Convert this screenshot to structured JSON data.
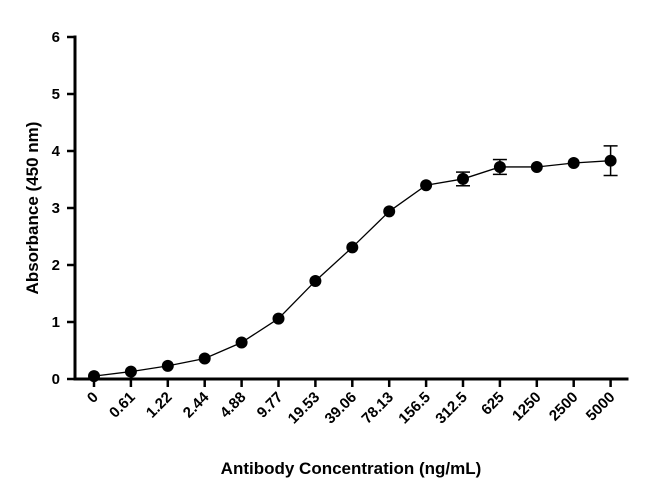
{
  "chart_data": {
    "type": "line",
    "title": "",
    "xlabel": "Antibody Concentration (ng/mL)",
    "ylabel": "Absorbance (450 nm)",
    "categories": [
      "0",
      "0.61",
      "1.22",
      "2.44",
      "4.88",
      "9.77",
      "19.53",
      "39.06",
      "78.13",
      "156.5",
      "312.5",
      "625",
      "1250",
      "2500",
      "5000"
    ],
    "ylim": [
      0,
      6
    ],
    "yticks": [
      "0",
      "1",
      "2",
      "3",
      "4",
      "5",
      "6"
    ],
    "grid": false,
    "series": [
      {
        "values": [
          0.05,
          0.13,
          0.23,
          0.36,
          0.64,
          1.06,
          1.72,
          2.31,
          2.94,
          3.4,
          3.51,
          3.72,
          3.72,
          3.79,
          3.83
        ],
        "error": [
          0,
          0,
          0,
          0,
          0,
          0,
          0,
          0,
          0,
          0,
          0.12,
          0.13,
          0.06,
          0.05,
          0.26
        ]
      }
    ],
    "colors": {
      "marker": "#000000",
      "line": "#000000"
    }
  }
}
